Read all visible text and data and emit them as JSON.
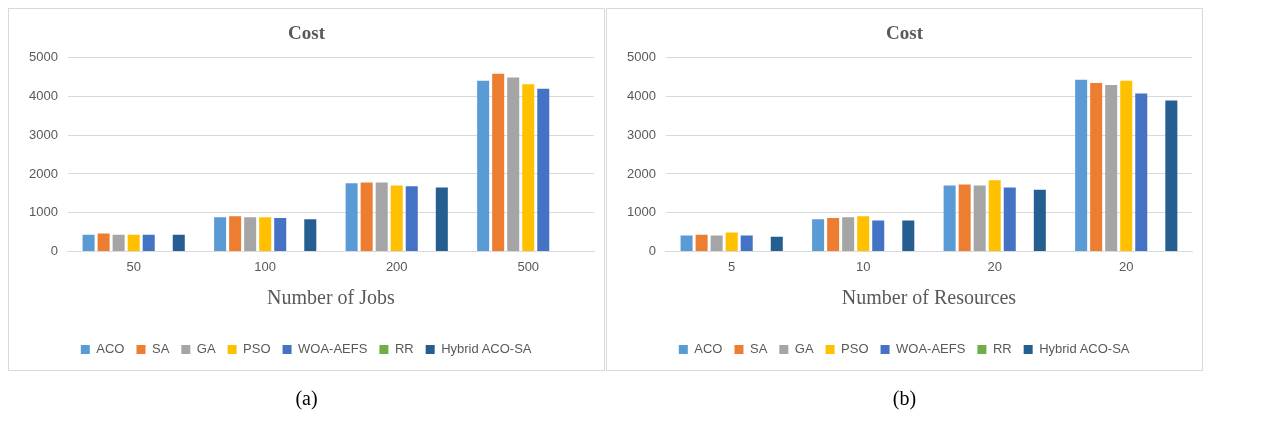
{
  "chart_data": [
    {
      "type": "bar",
      "title": "Cost",
      "xlabel": "Number of Jobs",
      "categories": [
        "50",
        "100",
        "200",
        "500"
      ],
      "series": [
        {
          "name": "ACO",
          "color": "#5b9bd5",
          "values": [
            430,
            880,
            1760,
            4410
          ]
        },
        {
          "name": "SA",
          "color": "#ed7d31",
          "values": [
            460,
            910,
            1780,
            4590
          ]
        },
        {
          "name": "GA",
          "color": "#a5a5a5",
          "values": [
            430,
            880,
            1780,
            4490
          ]
        },
        {
          "name": "PSO",
          "color": "#ffc000",
          "values": [
            430,
            880,
            1700,
            4320
          ]
        },
        {
          "name": "WOA-AEFS",
          "color": "#4472c4",
          "values": [
            430,
            860,
            1680,
            4200
          ]
        },
        {
          "name": "RR",
          "color": "#70ad47",
          "values": [
            0,
            0,
            0,
            0
          ]
        },
        {
          "name": "Hybrid ACO-SA",
          "color": "#255e91",
          "values": [
            430,
            830,
            1650,
            null
          ]
        }
      ],
      "ylim": [
        0,
        5000
      ],
      "yticks": [
        0,
        1000,
        2000,
        3000,
        4000,
        5000
      ],
      "grid": "y",
      "legend": "bottom",
      "annotations": [
        "(a)"
      ]
    },
    {
      "type": "bar",
      "title": "Cost",
      "xlabel": "Number of Resources",
      "categories": [
        "5",
        "10",
        "20",
        "20"
      ],
      "series": [
        {
          "name": "ACO",
          "color": "#5b9bd5",
          "values": [
            410,
            830,
            1700,
            4430
          ]
        },
        {
          "name": "SA",
          "color": "#ed7d31",
          "values": [
            430,
            860,
            1730,
            4350
          ]
        },
        {
          "name": "GA",
          "color": "#a5a5a5",
          "values": [
            410,
            880,
            1700,
            4300
          ]
        },
        {
          "name": "PSO",
          "color": "#ffc000",
          "values": [
            490,
            910,
            1840,
            4410
          ]
        },
        {
          "name": "WOA-AEFS",
          "color": "#4472c4",
          "values": [
            410,
            800,
            1650,
            4080
          ]
        },
        {
          "name": "RR",
          "color": "#70ad47",
          "values": [
            0,
            0,
            0,
            0
          ]
        },
        {
          "name": "Hybrid ACO-SA",
          "color": "#255e91",
          "values": [
            380,
            800,
            1590,
            3900
          ]
        }
      ],
      "ylim": [
        0,
        5000
      ],
      "yticks": [
        0,
        1000,
        2000,
        3000,
        4000,
        5000
      ],
      "grid": "y",
      "legend": "bottom",
      "annotations": [
        "(b)"
      ]
    }
  ]
}
